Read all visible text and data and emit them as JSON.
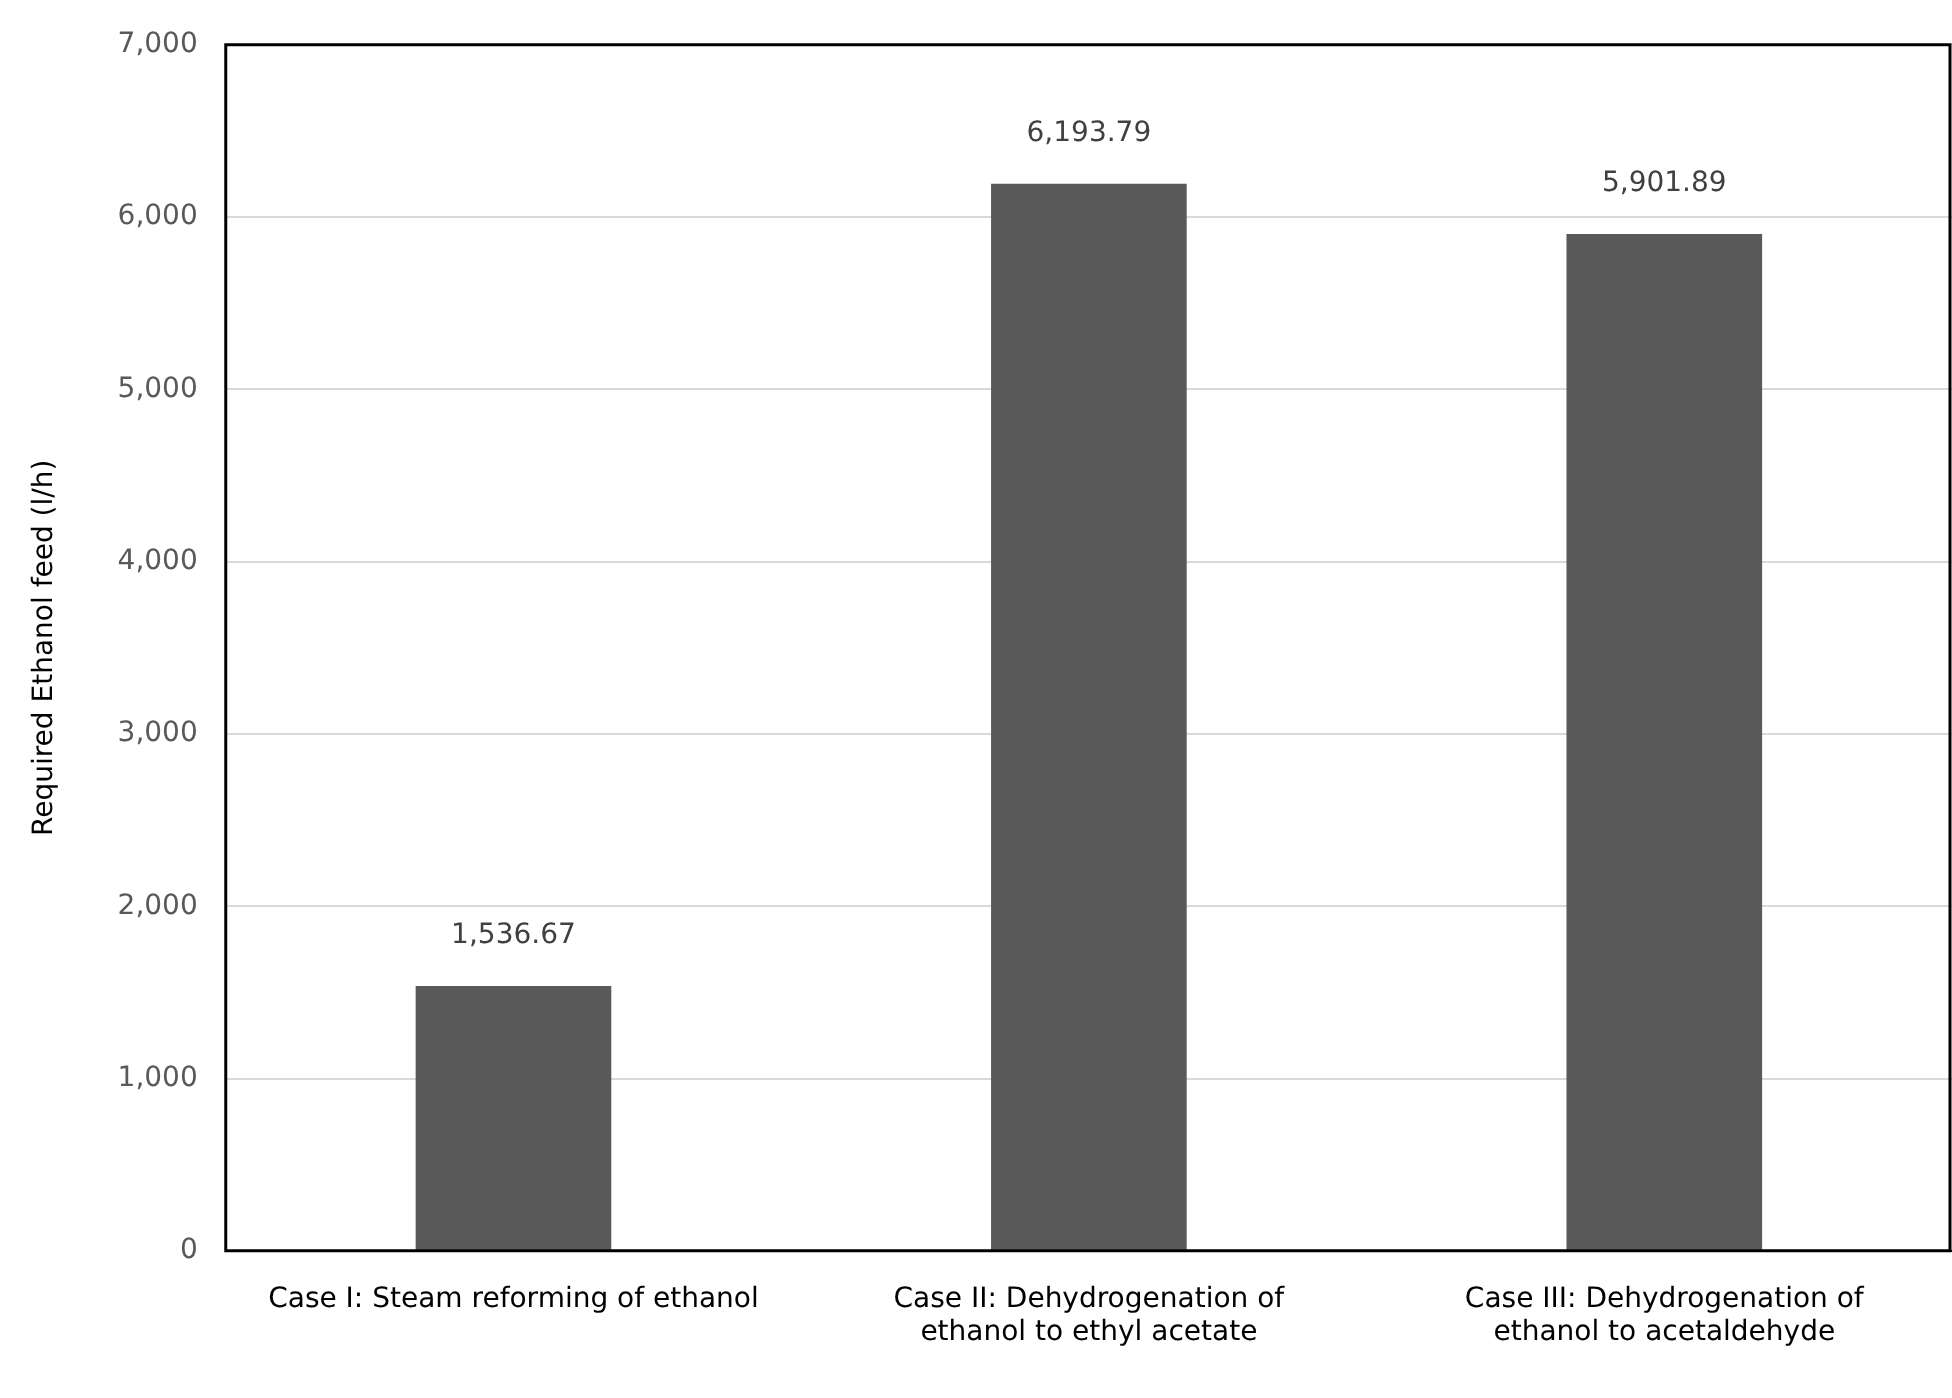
{
  "chart_data": {
    "type": "bar",
    "ylabel": "Required Ethanol feed (l/h)",
    "categories": [
      "Case I: Steam reforming of ethanol",
      "Case II: Dehydrogenation of ethanol to ethyl acetate",
      "Case III: Dehydrogenation of ethanol to acetaldehyde"
    ],
    "values": [
      1536.67,
      6193.79,
      5901.89
    ],
    "color": "#595959",
    "value_labels": [
      "1,536.67",
      "6,193.79",
      "5,901.89"
    ],
    "ylim": [
      0,
      7000
    ],
    "yticks": [
      {
        "value": 0,
        "label": "0"
      },
      {
        "value": 1000,
        "label": "1,000"
      },
      {
        "value": 2000,
        "label": "2,000"
      },
      {
        "value": 3000,
        "label": "3,000"
      },
      {
        "value": 4000,
        "label": "4,000"
      },
      {
        "value": 5000,
        "label": "5,000"
      },
      {
        "value": 6000,
        "label": "6,000"
      },
      {
        "value": 7000,
        "label": "7,000"
      }
    ],
    "grid": "y",
    "legend": false
  }
}
